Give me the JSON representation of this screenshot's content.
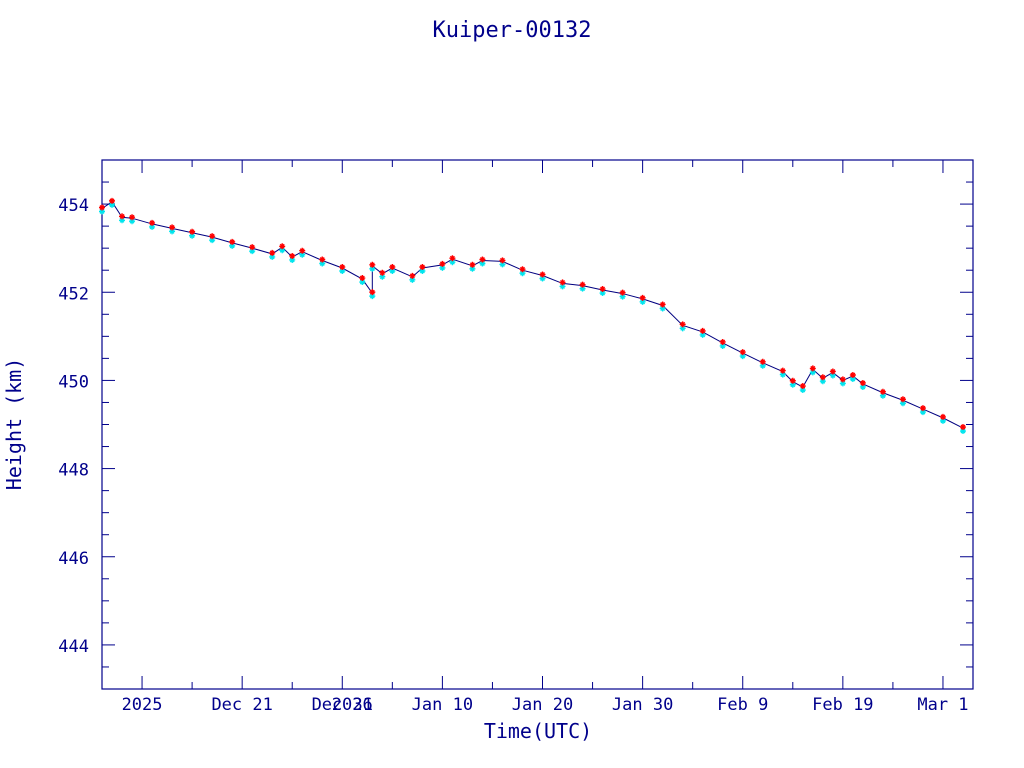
{
  "chart_data": {
    "type": "line",
    "title": "Kuiper-00132",
    "xlabel": "Time(UTC)",
    "ylabel": "Height (km)",
    "x_axis": "dates (UTC)",
    "xlim": [
      "2025-12-07",
      "2026-03-04"
    ],
    "ylim": [
      443,
      455
    ],
    "y_ticks": [
      444,
      446,
      448,
      450,
      452,
      454
    ],
    "x_tick_labels": [
      {
        "label": "2025",
        "date": "2025-12-11"
      },
      {
        "label": "Dec 21",
        "date": "2025-12-21"
      },
      {
        "label": "Dec 31",
        "date": "2025-12-31"
      },
      {
        "label": "2026",
        "date": "2026-01-01"
      },
      {
        "label": "Jan 10",
        "date": "2026-01-10"
      },
      {
        "label": "Jan 20",
        "date": "2026-01-20"
      },
      {
        "label": "Jan 30",
        "date": "2026-01-30"
      },
      {
        "label": "Feb  9",
        "date": "2026-02-09"
      },
      {
        "label": "Feb 19",
        "date": "2026-02-19"
      },
      {
        "label": "Mar  1",
        "date": "2026-03-01"
      }
    ],
    "grid": false,
    "colors": {
      "frame": "#00008b",
      "line": "#000080",
      "cyan": "#00e5ee",
      "red": "#ff0000"
    },
    "series": [
      {
        "style": "black line with cyan and red star markers",
        "points": [
          [
            "2025-12-07",
            453.9
          ],
          [
            "2025-12-08",
            454.05
          ],
          [
            "2025-12-09",
            453.7
          ],
          [
            "2025-12-10",
            453.68
          ],
          [
            "2025-12-12",
            453.55
          ],
          [
            "2025-12-14",
            453.45
          ],
          [
            "2025-12-16",
            453.35
          ],
          [
            "2025-12-18",
            453.25
          ],
          [
            "2025-12-20",
            453.12
          ],
          [
            "2025-12-22",
            453.0
          ],
          [
            "2025-12-24",
            452.87
          ],
          [
            "2025-12-25",
            453.02
          ],
          [
            "2025-12-26",
            452.8
          ],
          [
            "2025-12-27",
            452.92
          ],
          [
            "2025-12-29",
            452.72
          ],
          [
            "2025-12-31",
            452.55
          ],
          [
            "2026-01-02",
            452.3
          ],
          [
            "2026-01-03",
            451.98
          ],
          [
            "2026-01-03",
            452.6
          ],
          [
            "2026-01-04",
            452.42
          ],
          [
            "2026-01-05",
            452.55
          ],
          [
            "2026-01-07",
            452.35
          ],
          [
            "2026-01-08",
            452.55
          ],
          [
            "2026-01-10",
            452.62
          ],
          [
            "2026-01-11",
            452.75
          ],
          [
            "2026-01-13",
            452.6
          ],
          [
            "2026-01-14",
            452.72
          ],
          [
            "2026-01-16",
            452.7
          ],
          [
            "2026-01-18",
            452.5
          ],
          [
            "2026-01-20",
            452.38
          ],
          [
            "2026-01-22",
            452.2
          ],
          [
            "2026-01-24",
            452.15
          ],
          [
            "2026-01-26",
            452.05
          ],
          [
            "2026-01-28",
            451.97
          ],
          [
            "2026-01-30",
            451.85
          ],
          [
            "2026-02-01",
            451.7
          ],
          [
            "2026-02-03",
            451.25
          ],
          [
            "2026-02-05",
            451.1
          ],
          [
            "2026-02-07",
            450.85
          ],
          [
            "2026-02-09",
            450.62
          ],
          [
            "2026-02-11",
            450.4
          ],
          [
            "2026-02-13",
            450.2
          ],
          [
            "2026-02-14",
            449.97
          ],
          [
            "2026-02-15",
            449.85
          ],
          [
            "2026-02-16",
            450.25
          ],
          [
            "2026-02-17",
            450.05
          ],
          [
            "2026-02-18",
            450.18
          ],
          [
            "2026-02-19",
            450.0
          ],
          [
            "2026-02-20",
            450.1
          ],
          [
            "2026-02-21",
            449.92
          ],
          [
            "2026-02-23",
            449.72
          ],
          [
            "2026-02-25",
            449.55
          ],
          [
            "2026-02-27",
            449.35
          ],
          [
            "2026-03-01",
            449.15
          ],
          [
            "2026-03-03",
            448.92
          ]
        ]
      }
    ]
  }
}
